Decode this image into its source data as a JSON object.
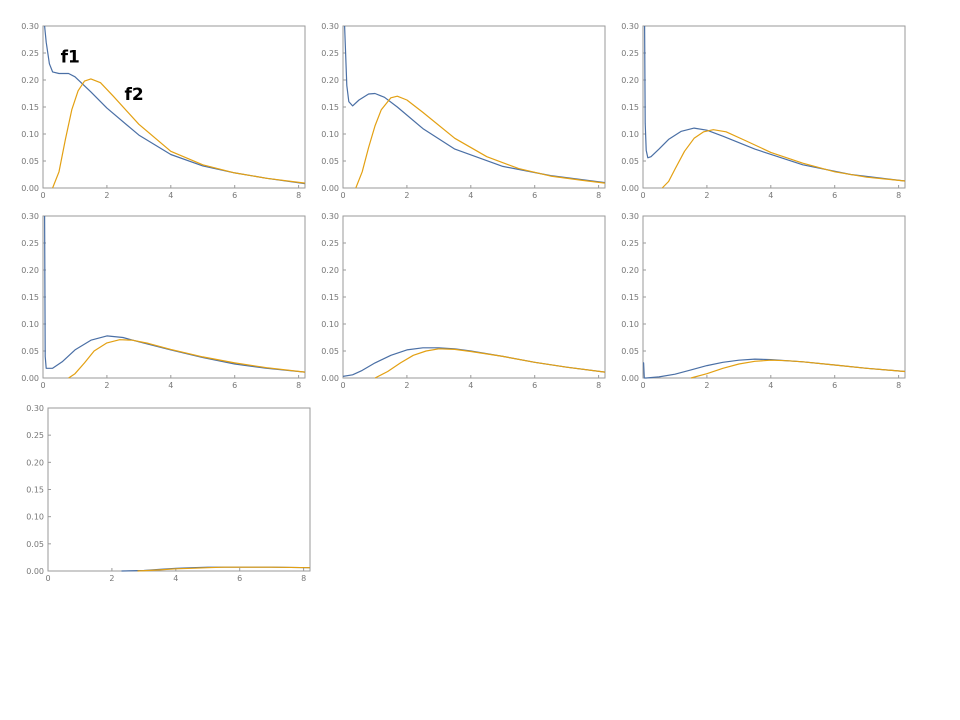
{
  "figure": {
    "layout": "3-column grid of 7 plots"
  },
  "colors": {
    "f1": "#4a6fa5",
    "f2": "#e3a012",
    "frame": "#9a9a9a",
    "tick_text": "#777777"
  },
  "chart_data": [
    {
      "type": "line",
      "title": "",
      "xlabel": "",
      "ylabel": "",
      "xlim": [
        0,
        8.2
      ],
      "ylim": [
        0,
        0.3
      ],
      "xticks": [
        "0",
        "2",
        "4",
        "6",
        "8"
      ],
      "yticks": [
        "0.00",
        "0.05",
        "0.10",
        "0.15",
        "0.20",
        "0.25",
        "0.30"
      ],
      "grid": false,
      "annotations": [
        {
          "text": "f1",
          "x": 0.55,
          "y": 0.232,
          "series": 0
        },
        {
          "text": "f2",
          "x": 2.55,
          "y": 0.163,
          "series": 1
        }
      ],
      "series": [
        {
          "color": "#4a6fa5",
          "x": [
            0.05,
            0.1,
            0.2,
            0.3,
            0.5,
            0.8,
            1.0,
            1.5,
            2.0,
            3.0,
            4.0,
            5.0,
            6.0,
            7.0,
            8.2
          ],
          "y": [
            0.3,
            0.27,
            0.23,
            0.215,
            0.212,
            0.212,
            0.206,
            0.178,
            0.148,
            0.098,
            0.062,
            0.041,
            0.028,
            0.018,
            0.008
          ]
        },
        {
          "color": "#e3a012",
          "x": [
            0.3,
            0.5,
            0.7,
            0.9,
            1.1,
            1.3,
            1.5,
            1.8,
            2.2,
            3.0,
            4.0,
            5.0,
            6.0,
            7.0,
            8.2
          ],
          "y": [
            0.0,
            0.03,
            0.09,
            0.145,
            0.18,
            0.198,
            0.202,
            0.195,
            0.17,
            0.118,
            0.068,
            0.043,
            0.028,
            0.018,
            0.009
          ]
        }
      ]
    },
    {
      "type": "line",
      "title": "",
      "xlabel": "",
      "ylabel": "",
      "xlim": [
        0,
        8.2
      ],
      "ylim": [
        0,
        0.3
      ],
      "xticks": [
        "0",
        "2",
        "4",
        "6",
        "8"
      ],
      "yticks": [
        "0.00",
        "0.05",
        "0.10",
        "0.15",
        "0.20",
        "0.25",
        "0.30"
      ],
      "grid": false,
      "series": [
        {
          "color": "#4a6fa5",
          "x": [
            0.05,
            0.08,
            0.12,
            0.18,
            0.3,
            0.5,
            0.8,
            1.0,
            1.3,
            1.7,
            2.5,
            3.5,
            5.0,
            6.5,
            8.2
          ],
          "y": [
            0.3,
            0.25,
            0.19,
            0.16,
            0.152,
            0.163,
            0.174,
            0.175,
            0.168,
            0.15,
            0.11,
            0.072,
            0.04,
            0.023,
            0.01
          ]
        },
        {
          "color": "#e3a012",
          "x": [
            0.4,
            0.6,
            0.8,
            1.0,
            1.2,
            1.5,
            1.7,
            2.0,
            2.5,
            3.5,
            4.5,
            5.5,
            6.5,
            7.5,
            8.2
          ],
          "y": [
            0.0,
            0.03,
            0.075,
            0.115,
            0.145,
            0.167,
            0.17,
            0.163,
            0.14,
            0.092,
            0.058,
            0.036,
            0.022,
            0.014,
            0.009
          ]
        }
      ]
    },
    {
      "type": "line",
      "title": "",
      "xlabel": "",
      "ylabel": "",
      "xlim": [
        0,
        8.2
      ],
      "ylim": [
        0,
        0.3
      ],
      "xticks": [
        "0",
        "2",
        "4",
        "6",
        "8"
      ],
      "yticks": [
        "0.00",
        "0.05",
        "0.10",
        "0.15",
        "0.20",
        "0.25",
        "0.30"
      ],
      "grid": false,
      "series": [
        {
          "color": "#4a6fa5",
          "x": [
            0.05,
            0.07,
            0.1,
            0.15,
            0.25,
            0.5,
            0.8,
            1.2,
            1.6,
            2.0,
            2.5,
            3.5,
            5.0,
            6.5,
            8.2
          ],
          "y": [
            0.3,
            0.12,
            0.07,
            0.056,
            0.058,
            0.072,
            0.09,
            0.105,
            0.111,
            0.107,
            0.096,
            0.072,
            0.043,
            0.025,
            0.013
          ]
        },
        {
          "color": "#e3a012",
          "x": [
            0.6,
            0.8,
            1.0,
            1.3,
            1.6,
            1.9,
            2.2,
            2.6,
            3.2,
            4.0,
            5.0,
            6.0,
            7.0,
            8.2
          ],
          "y": [
            0.0,
            0.012,
            0.035,
            0.068,
            0.092,
            0.104,
            0.108,
            0.104,
            0.088,
            0.066,
            0.046,
            0.03,
            0.02,
            0.013
          ]
        }
      ]
    },
    {
      "type": "line",
      "title": "",
      "xlabel": "",
      "ylabel": "",
      "xlim": [
        0,
        8.2
      ],
      "ylim": [
        0,
        0.3
      ],
      "xticks": [
        "0",
        "2",
        "4",
        "6",
        "8"
      ],
      "yticks": [
        "0.00",
        "0.05",
        "0.10",
        "0.15",
        "0.20",
        "0.25",
        "0.30"
      ],
      "grid": false,
      "series": [
        {
          "color": "#4a6fa5",
          "x": [
            0.05,
            0.07,
            0.1,
            0.3,
            0.6,
            1.0,
            1.5,
            2.0,
            2.5,
            3.0,
            4.0,
            5.0,
            6.0,
            7.0,
            8.2
          ],
          "y": [
            0.3,
            0.04,
            0.018,
            0.018,
            0.03,
            0.052,
            0.07,
            0.078,
            0.075,
            0.067,
            0.052,
            0.038,
            0.026,
            0.018,
            0.011
          ]
        },
        {
          "color": "#e3a012",
          "x": [
            0.8,
            1.0,
            1.3,
            1.6,
            2.0,
            2.4,
            2.8,
            3.3,
            4.0,
            5.0,
            6.0,
            7.0,
            8.2
          ],
          "y": [
            0.0,
            0.008,
            0.028,
            0.05,
            0.065,
            0.071,
            0.07,
            0.064,
            0.053,
            0.039,
            0.028,
            0.019,
            0.011
          ]
        }
      ]
    },
    {
      "type": "line",
      "title": "",
      "xlabel": "",
      "ylabel": "",
      "xlim": [
        0,
        8.2
      ],
      "ylim": [
        0,
        0.3
      ],
      "xticks": [
        "0",
        "2",
        "4",
        "6",
        "8"
      ],
      "yticks": [
        "0.00",
        "0.05",
        "0.10",
        "0.15",
        "0.20",
        "0.25",
        "0.30"
      ],
      "grid": false,
      "series": [
        {
          "color": "#4a6fa5",
          "x": [
            0.0,
            0.3,
            0.6,
            1.0,
            1.5,
            2.0,
            2.5,
            3.0,
            3.5,
            4.0,
            5.0,
            6.0,
            7.0,
            8.2
          ],
          "y": [
            0.003,
            0.006,
            0.014,
            0.028,
            0.042,
            0.052,
            0.056,
            0.056,
            0.054,
            0.05,
            0.04,
            0.029,
            0.02,
            0.011
          ]
        },
        {
          "color": "#e3a012",
          "x": [
            1.0,
            1.4,
            1.8,
            2.2,
            2.6,
            3.0,
            3.5,
            4.0,
            5.0,
            6.0,
            7.0,
            8.2
          ],
          "y": [
            0.0,
            0.012,
            0.028,
            0.042,
            0.05,
            0.054,
            0.053,
            0.049,
            0.04,
            0.029,
            0.02,
            0.011
          ]
        }
      ]
    },
    {
      "type": "line",
      "title": "",
      "xlabel": "",
      "ylabel": "",
      "xlim": [
        0,
        8.2
      ],
      "ylim": [
        0,
        0.3
      ],
      "xticks": [
        "0",
        "2",
        "4",
        "6",
        "8"
      ],
      "yticks": [
        "0.00",
        "0.05",
        "0.10",
        "0.15",
        "0.20",
        "0.25",
        "0.30"
      ],
      "grid": false,
      "series": [
        {
          "color": "#4a6fa5",
          "x": [
            0.0,
            0.02,
            0.04,
            0.1,
            0.5,
            1.0,
            1.5,
            2.0,
            2.5,
            3.0,
            3.5,
            4.0,
            5.0,
            6.0,
            7.0,
            8.2
          ],
          "y": [
            0.028,
            0.028,
            0.0,
            0.0,
            0.002,
            0.007,
            0.015,
            0.023,
            0.029,
            0.033,
            0.035,
            0.034,
            0.03,
            0.024,
            0.018,
            0.012
          ]
        },
        {
          "color": "#e3a012",
          "x": [
            1.5,
            2.0,
            2.5,
            3.0,
            3.5,
            4.0,
            4.5,
            5.0,
            6.0,
            7.0,
            8.2
          ],
          "y": [
            0.0,
            0.008,
            0.018,
            0.026,
            0.031,
            0.033,
            0.032,
            0.03,
            0.024,
            0.018,
            0.012
          ]
        }
      ]
    },
    {
      "type": "line",
      "title": "",
      "xlabel": "",
      "ylabel": "",
      "xlim": [
        0,
        8.2
      ],
      "ylim": [
        0,
        0.3
      ],
      "xticks": [
        "0",
        "2",
        "4",
        "6",
        "8"
      ],
      "yticks": [
        "0.00",
        "0.05",
        "0.10",
        "0.15",
        "0.20",
        "0.25",
        "0.30"
      ],
      "grid": false,
      "series": [
        {
          "color": "#4a6fa5",
          "x": [
            2.3,
            3.0,
            3.5,
            4.0,
            4.5,
            5.0,
            5.5,
            6.0,
            7.0,
            8.2
          ],
          "y": [
            0.0,
            0.001,
            0.003,
            0.005,
            0.006,
            0.007,
            0.007,
            0.007,
            0.007,
            0.006
          ]
        },
        {
          "color": "#e3a012",
          "x": [
            2.8,
            3.5,
            4.0,
            4.5,
            5.0,
            5.5,
            6.0,
            7.0,
            8.2
          ],
          "y": [
            0.0,
            0.002,
            0.004,
            0.005,
            0.006,
            0.007,
            0.007,
            0.007,
            0.006
          ]
        }
      ]
    }
  ]
}
